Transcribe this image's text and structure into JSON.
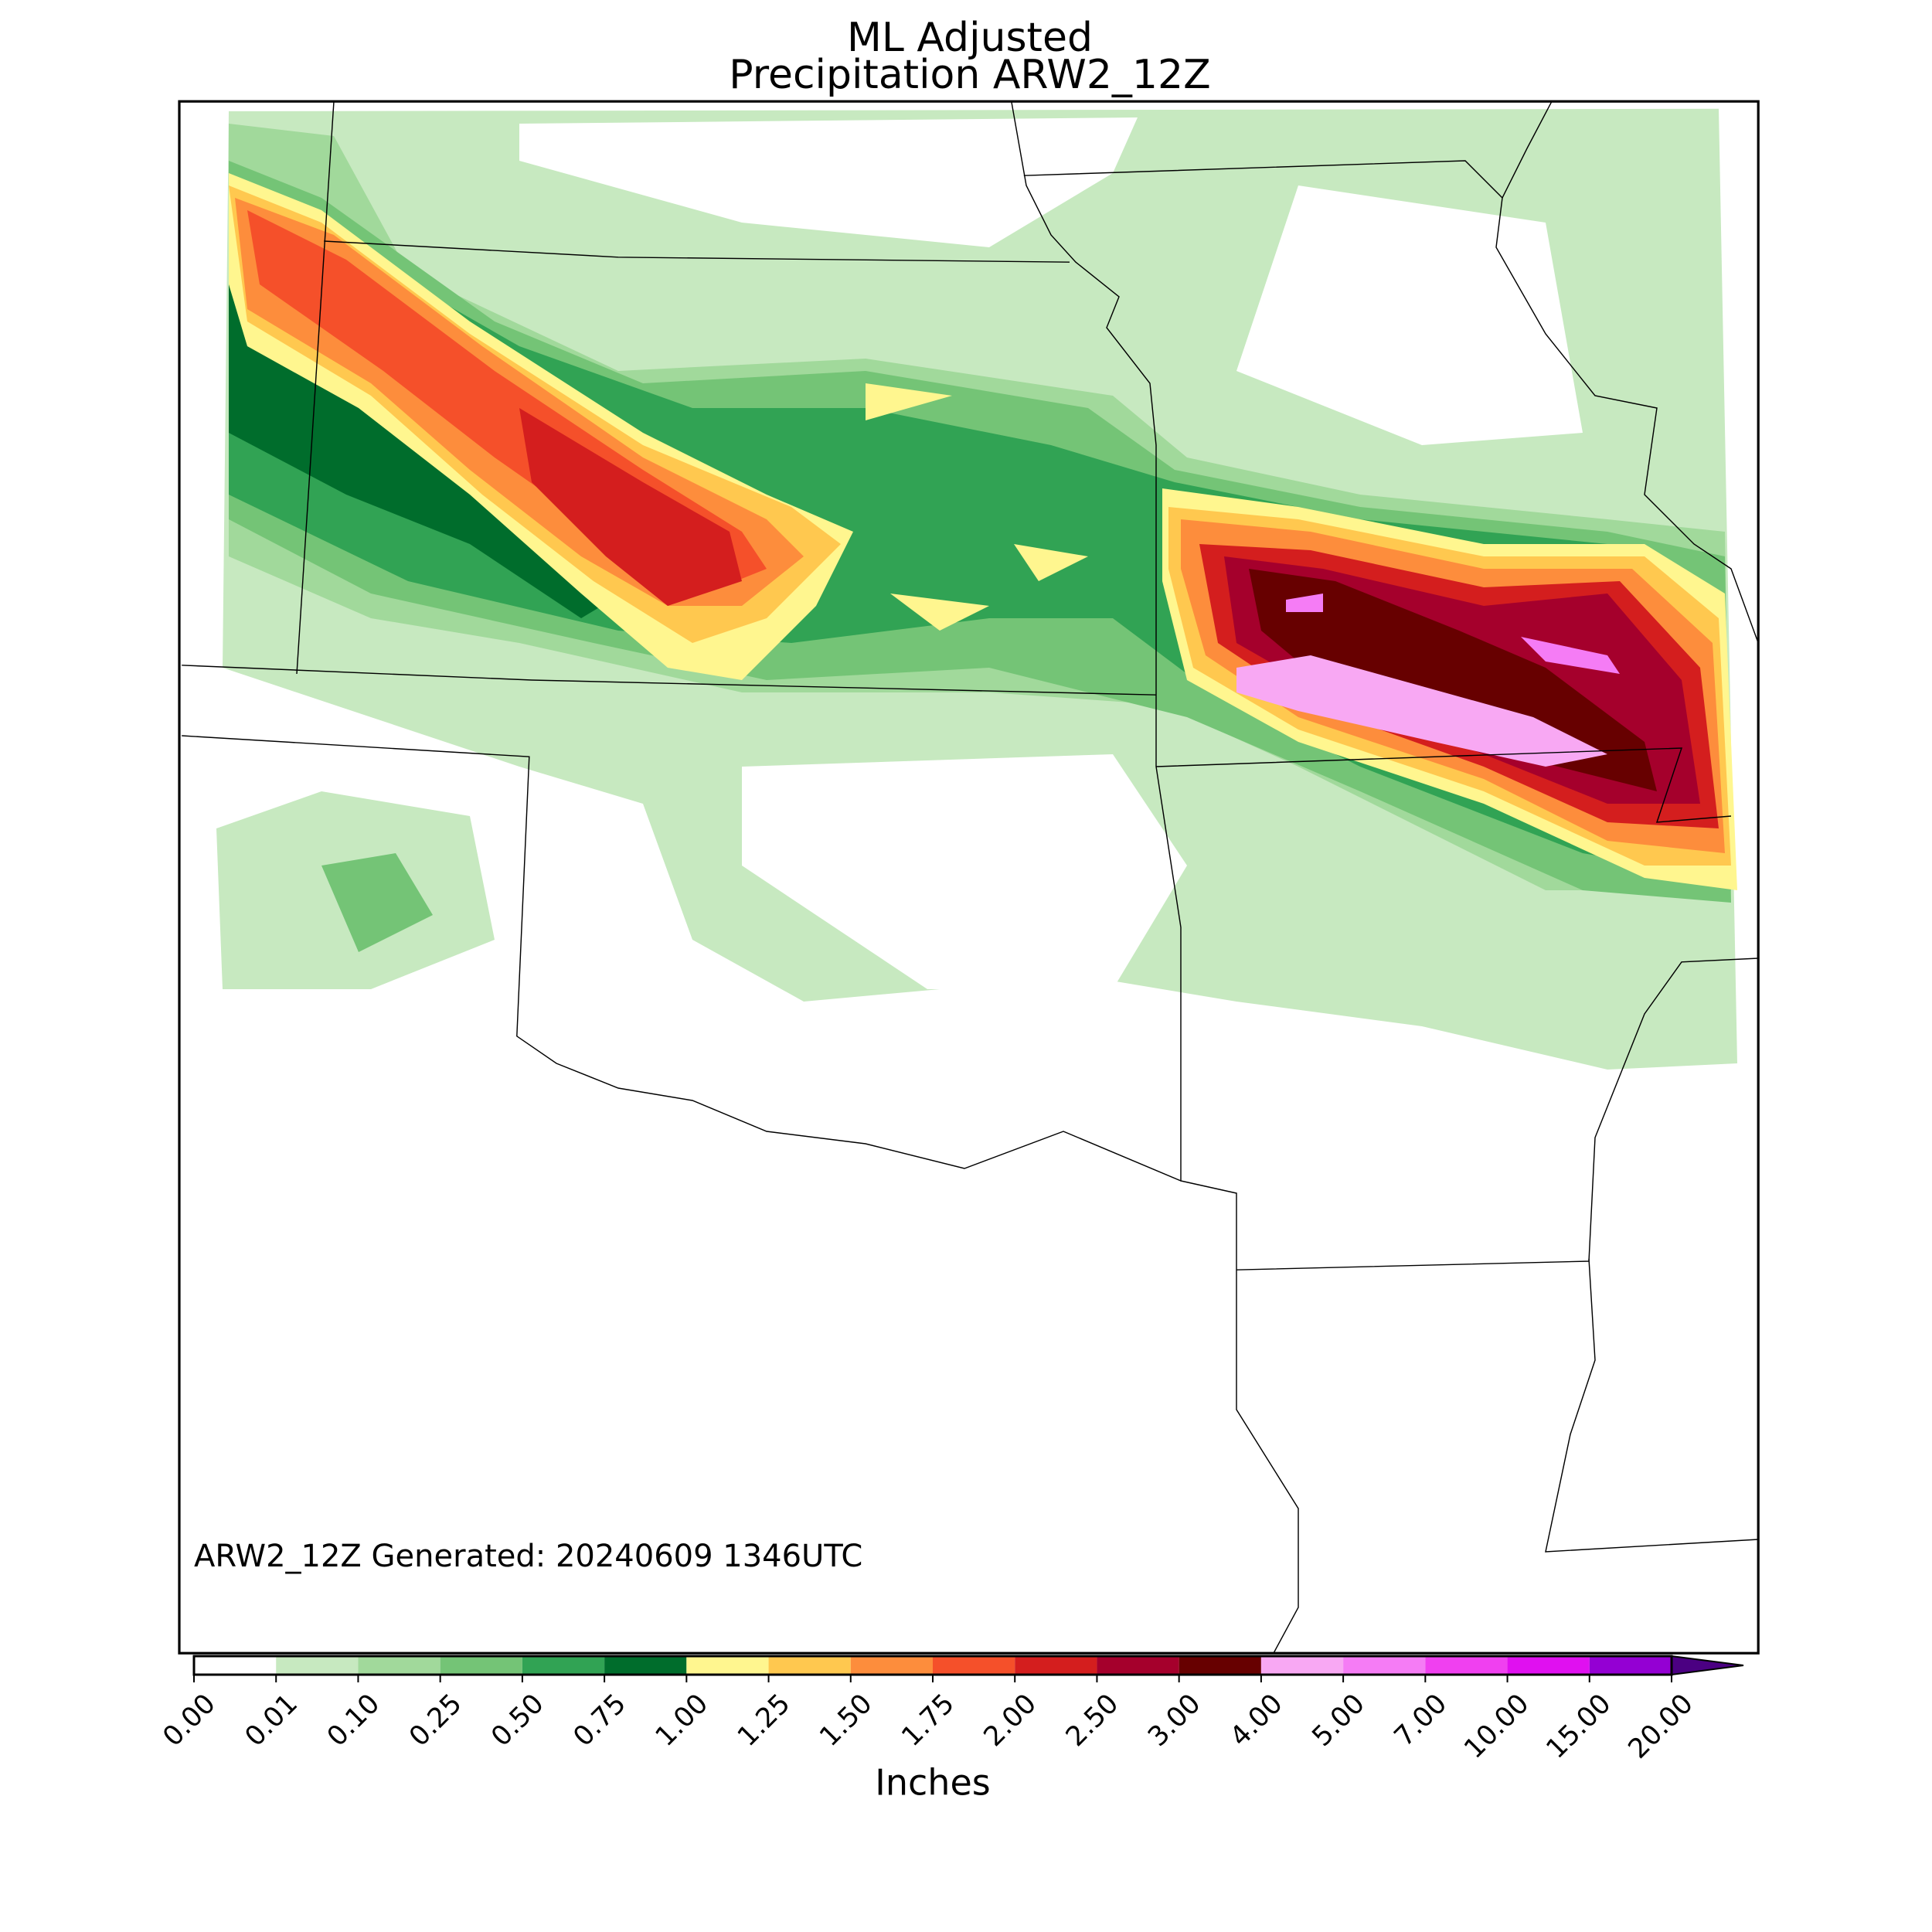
{
  "title": [
    "ML Adjusted",
    "Precipitation ARW2_12Z"
  ],
  "annotation": "ARW2_12Z Generated: 20240609 1346UTC",
  "colorbar": {
    "label": "Inches",
    "ticks": [
      {
        "value": 0,
        "label": "0.00"
      },
      0.01,
      {
        "value": 0.1,
        "label": "0.10"
      },
      0.25,
      {
        "value": 0.5,
        "label": "0.50"
      },
      0.75,
      {
        "value": 1,
        "label": "1.00"
      },
      1.25,
      {
        "value": 1.5,
        "label": "1.50"
      },
      1.75,
      {
        "value": 2,
        "label": "2.00"
      },
      {
        "value": 2.5,
        "label": "2.50"
      },
      {
        "value": 3,
        "label": "3.00"
      },
      {
        "value": 4,
        "label": "4.00"
      },
      {
        "value": 5,
        "label": "5.00"
      },
      {
        "value": 7,
        "label": "7.00"
      },
      {
        "value": 10,
        "label": "10.00"
      },
      {
        "value": 15,
        "label": "15.00"
      },
      {
        "value": 20,
        "label": "20.00"
      }
    ],
    "colors": [
      "#ffffff",
      "#c7e9c0",
      "#a1d99b",
      "#74c476",
      "#31a354",
      "#006d2c",
      "#fff68f",
      "#ffc84f",
      "#fd8d3c",
      "#f5502a",
      "#d41e1e",
      "#a5002c",
      "#670000",
      "#f8a8f3",
      "#f57cf5",
      "#f040f0",
      "#e010f0",
      "#9400d3"
    ],
    "extend_color": "#4b0082"
  }
}
